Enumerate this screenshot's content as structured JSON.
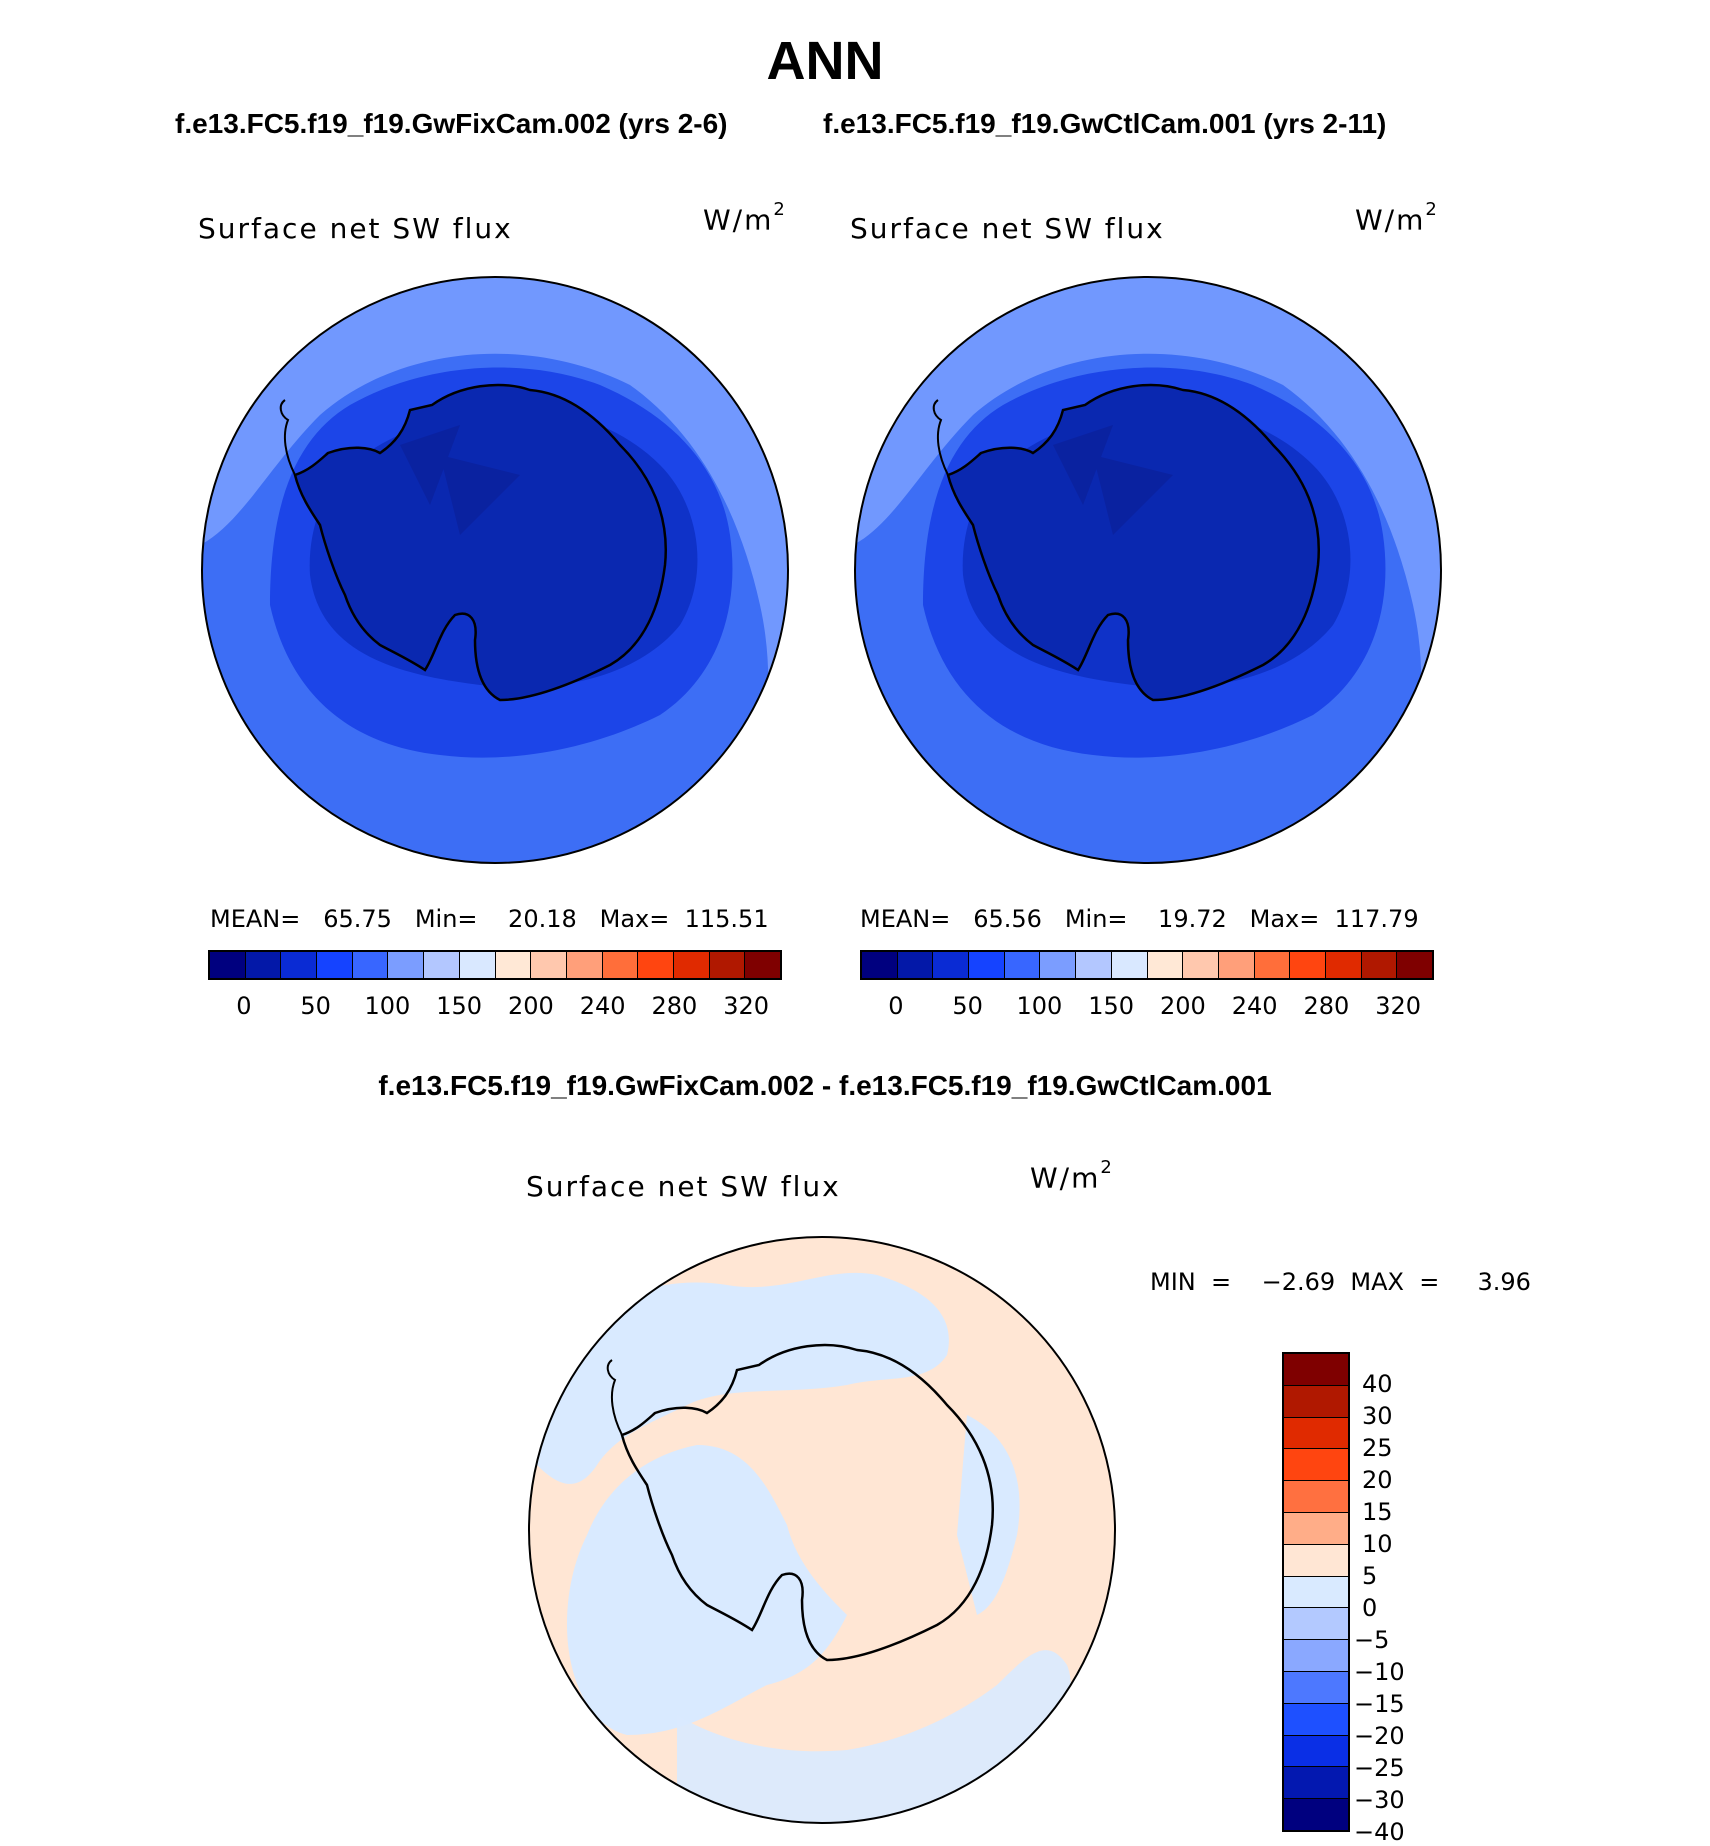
{
  "header": {
    "season": "ANN",
    "test_case": "f.e13.FC5.f19_f19.GwFixCam.002 (yrs 2-6)",
    "control_case": "f.e13.FC5.f19_f19.GwCtlCam.001 (yrs 2-11)",
    "diff_title": "f.e13.FC5.f19_f19.GwFixCam.002 - f.e13.FC5.f19_f19.GwCtlCam.001"
  },
  "panels": [
    {
      "title": "Surface net SW flux",
      "units_base": "W/m",
      "units_exp": "2",
      "stats": "MEAN=   65.75   Min=    20.18   Max=  115.51"
    },
    {
      "title": "Surface net SW flux",
      "units_base": "W/m",
      "units_exp": "2",
      "stats": "MEAN=   65.56   Min=    19.72   Max=  117.79"
    }
  ],
  "diff_panel": {
    "title": "Surface net SW flux",
    "units_base": "W/m",
    "units_exp": "2",
    "stats": "MIN  =    −2.69  MAX  =     3.96"
  },
  "colorbar": {
    "colors": [
      "#00007f",
      "#0318a8",
      "#0a2bd4",
      "#1543ff",
      "#3866ff",
      "#7b9dff",
      "#b3c7ff",
      "#d9e8ff",
      "#ffe8d6",
      "#ffc8ae",
      "#ff9f7a",
      "#ff6e3a",
      "#ff4510",
      "#e02a00",
      "#b01800",
      "#7f0000"
    ],
    "labels": [
      "0",
      "50",
      "100",
      "150",
      "200",
      "240",
      "280",
      "320"
    ]
  },
  "diff_colorbar": {
    "colors": [
      "#7f0000",
      "#b01800",
      "#e02a00",
      "#ff4510",
      "#ff7040",
      "#ffad88",
      "#ffe6d4",
      "#d9eaff",
      "#b3c9ff",
      "#8aa8ff",
      "#4d78ff",
      "#1e50ff",
      "#0a2fe6",
      "#0318b0",
      "#00007f"
    ],
    "labels": [
      "40",
      "30",
      "25",
      "20",
      "15",
      "10",
      "5",
      "0",
      "−5",
      "−10",
      "−15",
      "−20",
      "−25",
      "−30",
      "−40"
    ]
  },
  "map_legend": {
    "icons": [
      "antarctica-coastline-icon",
      "sw-flux-contour-fill-icon"
    ]
  }
}
